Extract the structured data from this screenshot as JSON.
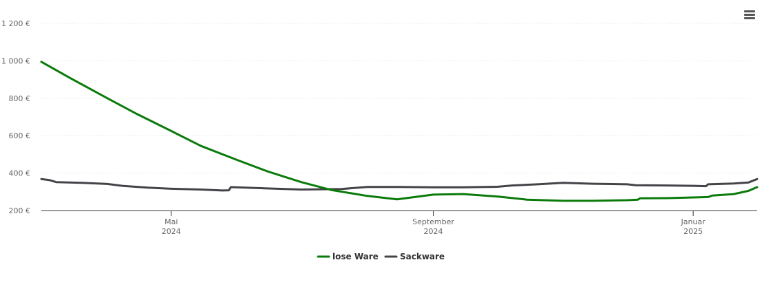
{
  "chart_data": {
    "type": "line",
    "title": "",
    "xlabel": "",
    "ylabel": "",
    "x_range": [
      "2024-03-01",
      "2025-01-31"
    ],
    "ylim": [
      200,
      1200
    ],
    "y_ticks": [
      {
        "value": 200,
        "label": "200 €"
      },
      {
        "value": 400,
        "label": "400 €"
      },
      {
        "value": 600,
        "label": "600 €"
      },
      {
        "value": 800,
        "label": "800 €"
      },
      {
        "value": 1000,
        "label": "1 000 €"
      },
      {
        "value": 1200,
        "label": "1 200 €"
      }
    ],
    "x_ticks": [
      {
        "date": "2024-05-01",
        "label": "Mai",
        "sublabel": "2024"
      },
      {
        "date": "2024-09-01",
        "label": "September",
        "sublabel": "2024"
      },
      {
        "date": "2025-01-01",
        "label": "Januar",
        "sublabel": "2025"
      }
    ],
    "grid": true,
    "legend_position": "bottom-center",
    "series": [
      {
        "name": "lose Ware",
        "color": "#0a7a0a",
        "points": [
          [
            "2024-03-01",
            995
          ],
          [
            "2024-03-15",
            905
          ],
          [
            "2024-04-01",
            800
          ],
          [
            "2024-04-15",
            715
          ],
          [
            "2024-05-01",
            625
          ],
          [
            "2024-05-15",
            545
          ],
          [
            "2024-06-01",
            470
          ],
          [
            "2024-06-15",
            410
          ],
          [
            "2024-07-01",
            352
          ],
          [
            "2024-07-15",
            310
          ],
          [
            "2024-08-01",
            278
          ],
          [
            "2024-08-15",
            260
          ],
          [
            "2024-09-01",
            285
          ],
          [
            "2024-09-15",
            288
          ],
          [
            "2024-10-01",
            275
          ],
          [
            "2024-10-15",
            258
          ],
          [
            "2024-11-01",
            252
          ],
          [
            "2024-11-15",
            252
          ],
          [
            "2024-12-01",
            255
          ],
          [
            "2024-12-06",
            258
          ],
          [
            "2024-12-07",
            265
          ],
          [
            "2024-12-20",
            266
          ],
          [
            "2025-01-01",
            270
          ],
          [
            "2025-01-08",
            272
          ],
          [
            "2025-01-10",
            280
          ],
          [
            "2025-01-20",
            288
          ],
          [
            "2025-01-27",
            305
          ],
          [
            "2025-01-31",
            325
          ]
        ]
      },
      {
        "name": "Sackware",
        "color": "#434348",
        "points": [
          [
            "2024-03-01",
            368
          ],
          [
            "2024-03-05",
            362
          ],
          [
            "2024-03-08",
            352
          ],
          [
            "2024-03-20",
            348
          ],
          [
            "2024-04-01",
            342
          ],
          [
            "2024-04-08",
            332
          ],
          [
            "2024-04-20",
            322
          ],
          [
            "2024-05-01",
            316
          ],
          [
            "2024-05-15",
            312
          ],
          [
            "2024-05-25",
            307
          ],
          [
            "2024-05-28",
            308
          ],
          [
            "2024-05-29",
            325
          ],
          [
            "2024-06-15",
            318
          ],
          [
            "2024-07-01",
            312
          ],
          [
            "2024-07-20",
            315
          ],
          [
            "2024-08-01",
            326
          ],
          [
            "2024-08-15",
            326
          ],
          [
            "2024-09-01",
            324
          ],
          [
            "2024-09-15",
            324
          ],
          [
            "2024-10-01",
            327
          ],
          [
            "2024-10-08",
            334
          ],
          [
            "2024-10-20",
            340
          ],
          [
            "2024-11-01",
            348
          ],
          [
            "2024-11-15",
            343
          ],
          [
            "2024-12-01",
            340
          ],
          [
            "2024-12-05",
            335
          ],
          [
            "2024-12-20",
            334
          ],
          [
            "2025-01-01",
            332
          ],
          [
            "2025-01-07",
            330
          ],
          [
            "2025-01-08",
            340
          ],
          [
            "2025-01-20",
            344
          ],
          [
            "2025-01-27",
            350
          ],
          [
            "2025-01-31",
            368
          ]
        ]
      }
    ]
  },
  "toolbar": {
    "menu_icon": "hamburger-menu-icon"
  }
}
